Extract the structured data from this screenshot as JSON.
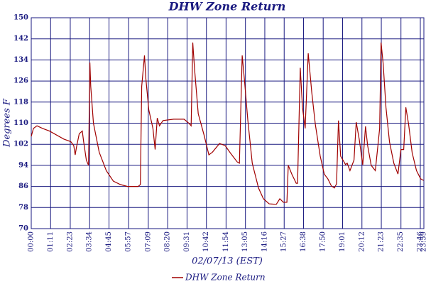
{
  "chart_data": {
    "type": "line",
    "title": "DHW Zone Return",
    "x_label": "02/07/13 (EST)",
    "y_label": "Degrees F",
    "xlim": [
      0,
      1439
    ],
    "xticks": [
      {
        "value": 0,
        "label": "00:00"
      },
      {
        "value": 71,
        "label": "01:11"
      },
      {
        "value": 143,
        "label": "02:23"
      },
      {
        "value": 214,
        "label": "03:34"
      },
      {
        "value": 285,
        "label": "04:45"
      },
      {
        "value": 357,
        "label": "05:57"
      },
      {
        "value": 429,
        "label": "07:09"
      },
      {
        "value": 500,
        "label": "08:20"
      },
      {
        "value": 571,
        "label": "09:31"
      },
      {
        "value": 642,
        "label": "10:42"
      },
      {
        "value": 714,
        "label": "11:54"
      },
      {
        "value": 785,
        "label": "13:05"
      },
      {
        "value": 856,
        "label": "14:16"
      },
      {
        "value": 927,
        "label": "15:27"
      },
      {
        "value": 998,
        "label": "16:38"
      },
      {
        "value": 1070,
        "label": "17:50"
      },
      {
        "value": 1141,
        "label": "19:01"
      },
      {
        "value": 1212,
        "label": "20:12"
      },
      {
        "value": 1283,
        "label": "21:23"
      },
      {
        "value": 1355,
        "label": "22:35"
      },
      {
        "value": 1426,
        "label": "23:46"
      },
      {
        "value": 1439,
        "label": "23:59"
      }
    ],
    "ylim": [
      70,
      150
    ],
    "yticks": [
      70,
      78,
      86,
      94,
      102,
      110,
      118,
      126,
      134,
      142,
      150
    ],
    "grid": true,
    "series": [
      {
        "name": "DHW Zone Return",
        "color": "#a00000",
        "x": [
          0,
          8,
          21,
          42,
          67,
          119,
          145,
          156,
          161,
          166,
          176,
          187,
          192,
          202,
          210,
          215,
          218,
          228,
          249,
          275,
          301,
          327,
          353,
          392,
          400,
          405,
          415,
          420,
          431,
          446,
          454,
          462,
          470,
          483,
          522,
          560,
          573,
          581,
          586,
          592,
          599,
          612,
          633,
          651,
          664,
          690,
          711,
          729,
          755,
          763,
          773,
          781,
          794,
          810,
          833,
          851,
          872,
          898,
          911,
          924,
          937,
          942,
          955,
          971,
          976,
          986,
          994,
          1004,
          1015,
          1028,
          1041,
          1059,
          1074,
          1087,
          1100,
          1111,
          1119,
          1126,
          1134,
          1152,
          1158,
          1168,
          1183,
          1191,
          1202,
          1215,
          1225,
          1233,
          1246,
          1261,
          1269,
          1277,
          1282,
          1290,
          1300,
          1313,
          1329,
          1344,
          1355,
          1365,
          1373,
          1383,
          1396,
          1412,
          1427,
          1438
        ],
        "values": [
          105,
          108,
          109,
          108,
          107,
          104,
          103,
          101.5,
          98,
          101,
          106,
          107,
          103,
          96,
          94,
          133,
          124,
          110,
          99,
          92,
          88,
          86.7,
          86,
          86,
          86.7,
          124,
          135.7,
          127,
          115,
          108,
          100,
          112,
          109,
          111,
          111.5,
          111.5,
          110.4,
          109.6,
          109,
          140.6,
          130,
          113.6,
          105.6,
          98,
          99,
          102.3,
          101.5,
          98.8,
          95.3,
          94.8,
          135.7,
          127,
          111,
          94.8,
          85.4,
          81.3,
          79.4,
          79.2,
          81.3,
          80,
          80,
          94,
          90.7,
          87.2,
          87.2,
          131,
          116,
          108,
          136.5,
          121.7,
          109.6,
          97.5,
          90.7,
          88.9,
          86.2,
          85.4,
          87,
          111,
          97.5,
          94.3,
          94.8,
          92,
          96,
          110.4,
          104,
          94.2,
          108.8,
          101.5,
          94,
          92,
          100,
          108,
          140.6,
          132.5,
          116,
          102.9,
          94.8,
          90.7,
          100,
          100,
          116,
          109.6,
          98.8,
          92,
          88.9,
          88.3
        ]
      }
    ]
  }
}
